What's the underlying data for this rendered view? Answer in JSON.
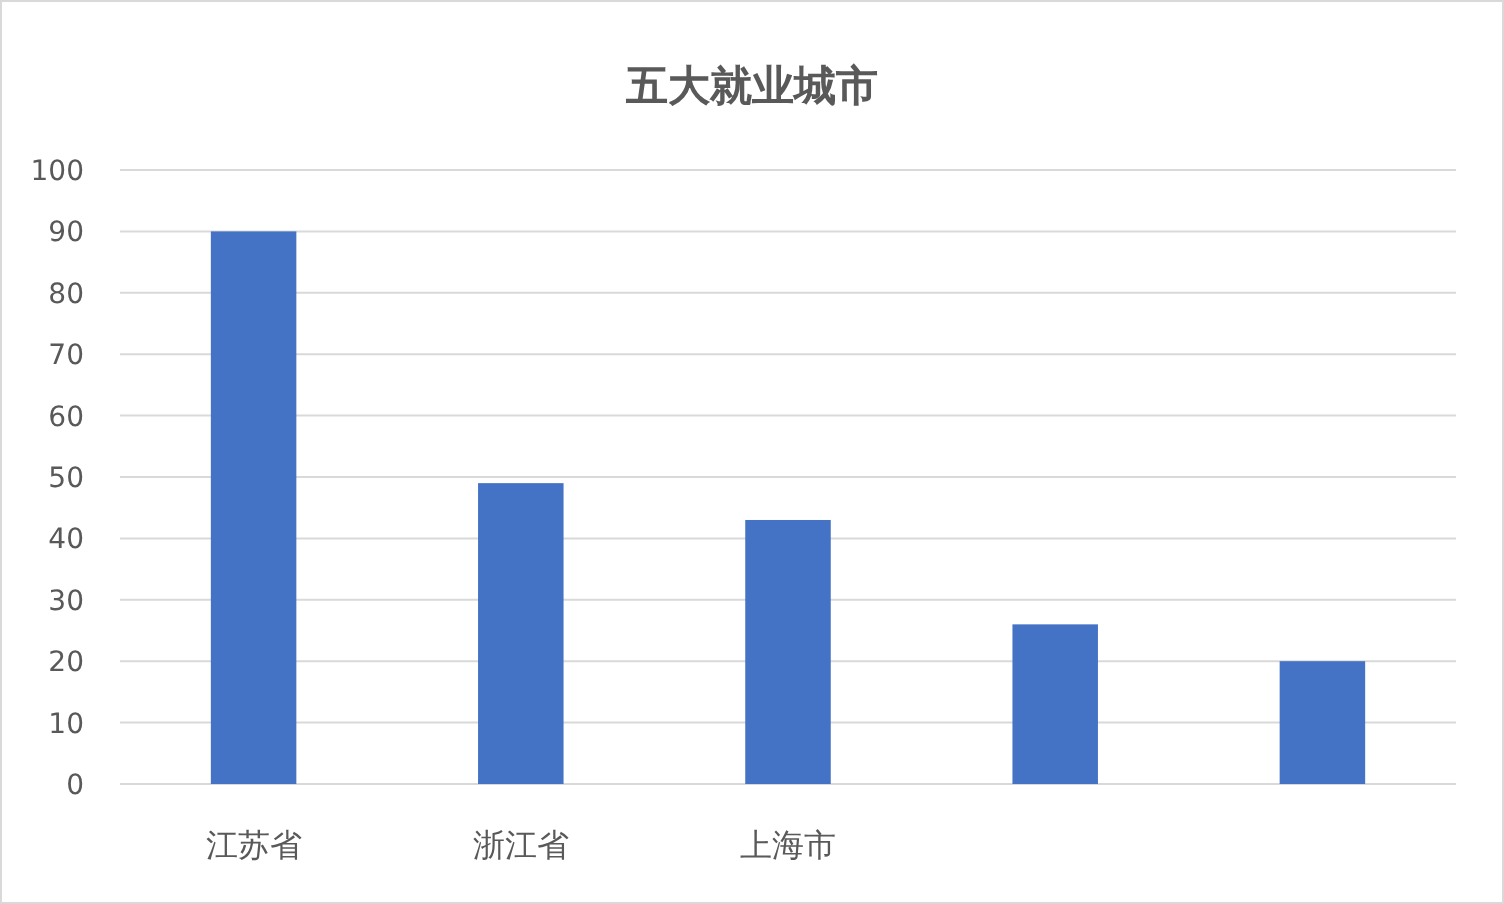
{
  "chart_data": {
    "type": "bar",
    "title": "五大就业城市",
    "categories": [
      "江苏省",
      "浙江省",
      "上海市",
      null,
      null
    ],
    "values": [
      90,
      49,
      43,
      26,
      20
    ],
    "color": "#4472c4",
    "ylim": [
      0,
      100
    ],
    "yticks": [
      0,
      10,
      20,
      30,
      40,
      50,
      60,
      70,
      80,
      90,
      100
    ],
    "grid": "y"
  }
}
